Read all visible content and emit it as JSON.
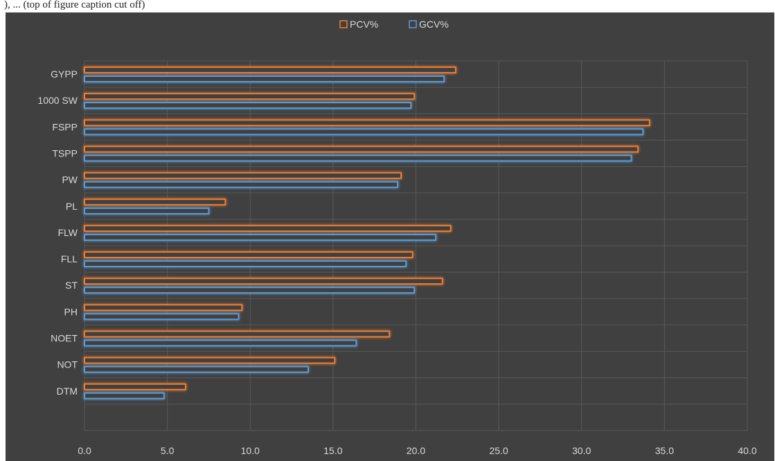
{
  "caption": {
    "text": "), ... (top of figure caption cut off)"
  },
  "chart_data": {
    "type": "bar",
    "orientation": "horizontal",
    "title": "",
    "xlabel": "",
    "ylabel": "",
    "categories": [
      "GYPP",
      "1000 SW",
      "FSPP",
      "TSPP",
      "PW",
      "PL",
      "FLW",
      "FLL",
      "ST",
      "PH",
      "NOET",
      "NOT",
      "DTM"
    ],
    "series": [
      {
        "name": "PCV%",
        "color": "#ed7d31",
        "values": [
          22.4,
          19.9,
          34.1,
          33.4,
          19.1,
          8.5,
          22.1,
          19.8,
          21.6,
          9.5,
          18.4,
          15.1,
          6.1
        ]
      },
      {
        "name": "GCV%",
        "color": "#5b9bd5",
        "values": [
          21.7,
          19.7,
          33.7,
          33.0,
          18.9,
          7.5,
          21.2,
          19.4,
          19.9,
          9.3,
          16.4,
          13.5,
          4.8
        ]
      }
    ],
    "xlim": [
      0,
      40
    ],
    "x_ticks": [
      "0.0",
      "5.0",
      "10.0",
      "15.0",
      "20.0",
      "25.0",
      "30.0",
      "35.0",
      "40.0"
    ],
    "grid": true,
    "legend_position": "top",
    "background": "#404040",
    "gridline_color": "#595959"
  }
}
